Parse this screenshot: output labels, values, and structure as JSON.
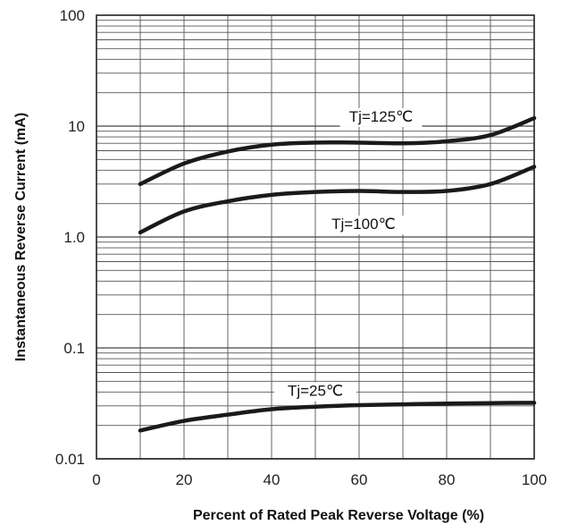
{
  "chart_data": {
    "type": "line",
    "xlabel": "Percent of Rated Peak Reverse Voltage (%)",
    "ylabel": "Instantaneous Reverse Current (mA)",
    "xlim": [
      0,
      100
    ],
    "ylim": [
      0.01,
      100
    ],
    "yscale": "log",
    "grid": true,
    "xticks": [
      "0",
      "20",
      "40",
      "60",
      "80",
      "100"
    ],
    "yticks": [
      {
        "value": 0.01,
        "label": "0.01"
      },
      {
        "value": 0.1,
        "label": "0.1"
      },
      {
        "value": 1,
        "label": "1.0"
      },
      {
        "value": 10,
        "label": "10"
      },
      {
        "value": 100,
        "label": "100"
      }
    ],
    "series": [
      {
        "name": "Tj=125℃",
        "x": [
          10,
          20,
          30,
          40,
          50,
          60,
          70,
          80,
          90,
          100
        ],
        "y": [
          3.0,
          4.6,
          5.9,
          6.8,
          7.1,
          7.1,
          7.0,
          7.3,
          8.3,
          11.8
        ]
      },
      {
        "name": "Tj=100℃",
        "x": [
          10,
          20,
          30,
          40,
          50,
          60,
          70,
          80,
          90,
          100
        ],
        "y": [
          1.1,
          1.7,
          2.1,
          2.4,
          2.55,
          2.6,
          2.55,
          2.6,
          3.0,
          4.3
        ]
      },
      {
        "name": "Tj=25℃",
        "x": [
          10,
          20,
          30,
          40,
          50,
          60,
          70,
          80,
          90,
          100
        ],
        "y": [
          0.018,
          0.022,
          0.025,
          0.028,
          0.0295,
          0.0305,
          0.031,
          0.0315,
          0.0318,
          0.032
        ]
      }
    ]
  }
}
